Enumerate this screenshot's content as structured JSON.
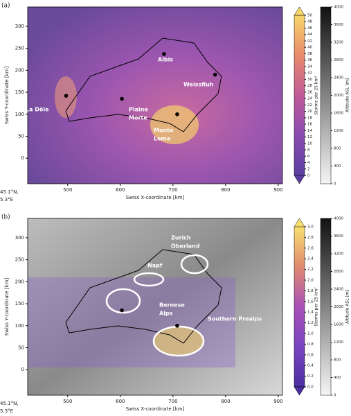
{
  "chart_data": [
    {
      "type": "heatmap",
      "panel": "(a)",
      "xlabel": "Swiss X-coordinate [km]",
      "ylabel": "Swiss Y-coordinate [km]",
      "xlim": [
        424,
        908
      ],
      "ylim": [
        -58,
        344
      ],
      "xticks": [
        500,
        600,
        700,
        800,
        900
      ],
      "yticks": [
        0,
        50,
        100,
        150,
        200,
        250,
        300
      ],
      "corner": [
        "45.1°N,",
        "5.3°E"
      ],
      "points": [
        {
          "x": 683,
          "y": 237
        },
        {
          "x": 780,
          "y": 190
        },
        {
          "x": 497,
          "y": 142
        },
        {
          "x": 603,
          "y": 135
        },
        {
          "x": 708,
          "y": 100
        }
      ],
      "annotations": [
        [
          "Albis"
        ],
        [
          "Weissfluh"
        ],
        [
          "La Dôle"
        ],
        [
          "Plaine",
          "Morte"
        ],
        [
          "Monte",
          "Lema"
        ]
      ],
      "colorbar": {
        "label": "Storms per 25 km²",
        "lim": [
          0,
          50
        ],
        "colors": [
          "#5a3fa0",
          "#8a4bb0",
          "#c05a98",
          "#e88a6c",
          "#f8d66a"
        ],
        "ticks": [
          0,
          2,
          4,
          6,
          8,
          10,
          12,
          14,
          16,
          18,
          20,
          22,
          24,
          26,
          28,
          30,
          32,
          34,
          36,
          38,
          40,
          42,
          44,
          46,
          48,
          50
        ]
      },
      "altitude": {
        "label": "Altitude ASL [m]",
        "lim": [
          0,
          4000
        ],
        "ticks": [
          0,
          400,
          800,
          1200,
          1600,
          2000,
          2400,
          2800,
          3200,
          3600,
          4000
        ]
      }
    },
    {
      "type": "heatmap",
      "panel": "(b)",
      "xlabel": "Swiss X-coordinate [km]",
      "ylabel": "Swiss Y-coordinate [km]",
      "xlim": [
        424,
        908
      ],
      "ylim": [
        -58,
        344
      ],
      "xticks": [
        500,
        600,
        700,
        800,
        900
      ],
      "yticks": [
        0,
        50,
        100,
        150,
        200,
        250,
        300
      ],
      "corner": [
        "45.1°N,",
        "5.3°E"
      ],
      "points": [
        {
          "x": 603,
          "y": 135
        },
        {
          "x": 708,
          "y": 100
        }
      ],
      "annotations": [
        [
          "Zurich",
          "Oberland"
        ],
        [
          "Napf"
        ],
        [
          "Bernese",
          "Alps"
        ],
        [
          "Southern Prealps"
        ]
      ],
      "colorbar": {
        "label": "Storms per 25 km²",
        "lim": [
          0,
          3
        ],
        "colors": [
          "#4a2fa0",
          "#7a45c0",
          "#a850b8",
          "#e08a70",
          "#f8e070"
        ],
        "ticks": [
          {
            "value": 0,
            "label": "0.0"
          },
          0.2,
          0.4,
          0.6,
          0.8,
          {
            "value": 1,
            "label": "1.0"
          },
          1.2,
          1.4,
          1.6,
          1.8,
          {
            "value": 2,
            "label": "2.0"
          },
          2.2,
          2.4,
          2.6,
          2.8,
          {
            "value": 3,
            "label": "3.0"
          }
        ]
      },
      "altitude": {
        "label": "Altitude ASL [m]",
        "lim": [
          0,
          4000
        ],
        "ticks": [
          0,
          400,
          800,
          1200,
          1600,
          2000,
          2400,
          2800,
          3200,
          3600,
          4000
        ]
      }
    }
  ]
}
